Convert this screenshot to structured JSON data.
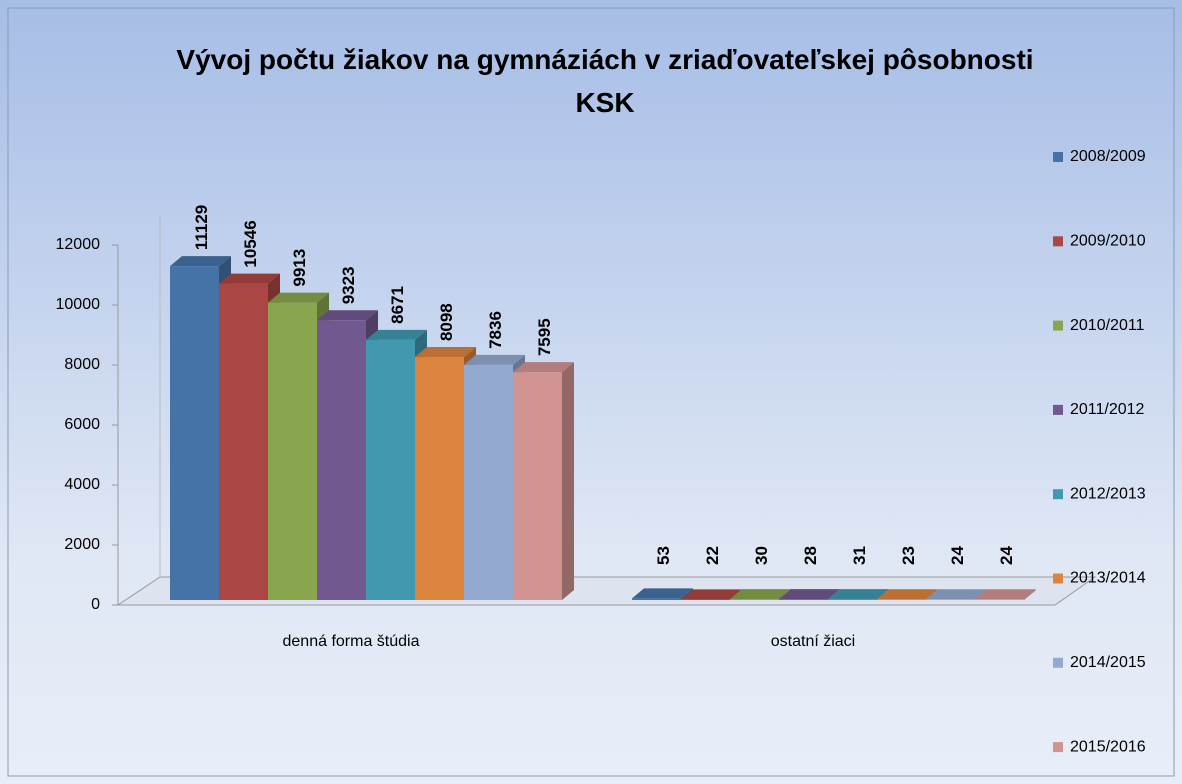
{
  "chart_data": {
    "type": "bar3d",
    "title": "Vývoj počtu žiakov na gymnáziách v zriaďovateľskej pôsobnosti  KSK",
    "categories": [
      "denná forma štúdia",
      "ostatní žiaci"
    ],
    "series": [
      {
        "name": "2008/2009",
        "color": "#4572a7",
        "values": [
          11129,
          53
        ]
      },
      {
        "name": "2009/2010",
        "color": "#aa4643",
        "values": [
          10546,
          22
        ]
      },
      {
        "name": "2010/2011",
        "color": "#89a54e",
        "values": [
          9913,
          30
        ]
      },
      {
        "name": "2011/2012",
        "color": "#71588f",
        "values": [
          9323,
          28
        ]
      },
      {
        "name": "2012/2013",
        "color": "#4198af",
        "values": [
          8671,
          31
        ]
      },
      {
        "name": "2013/2014",
        "color": "#db843d",
        "values": [
          8098,
          23
        ]
      },
      {
        "name": "2014/2015",
        "color": "#93a9cf",
        "values": [
          7836,
          24
        ]
      },
      {
        "name": "2015/2016",
        "color": "#d19392",
        "values": [
          7595,
          24
        ]
      }
    ],
    "ylim": [
      0,
      12000
    ],
    "yticks": [
      0,
      2000,
      4000,
      6000,
      8000,
      10000,
      12000
    ],
    "legend": "right"
  }
}
